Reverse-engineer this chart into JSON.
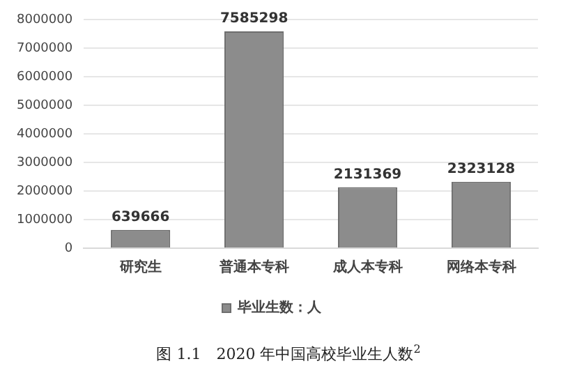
{
  "chart_data": {
    "type": "bar",
    "categories": [
      "研究生",
      "普通本专科",
      "成人本专科",
      "网络本专科"
    ],
    "series": [
      {
        "name": "毕业生数：人",
        "color": "#8c8c8c",
        "values": [
          639666,
          7585298,
          2131369,
          2323128
        ]
      }
    ],
    "ylim": [
      0,
      8000000
    ],
    "yticks": [
      0,
      1000000,
      2000000,
      3000000,
      4000000,
      5000000,
      6000000,
      7000000,
      8000000
    ],
    "grid": "y",
    "legend": "bottom",
    "data_labels": true,
    "annotations": [
      "图 1.1　2020 年中国高校毕业生人数$^{2}$"
    ]
  }
}
